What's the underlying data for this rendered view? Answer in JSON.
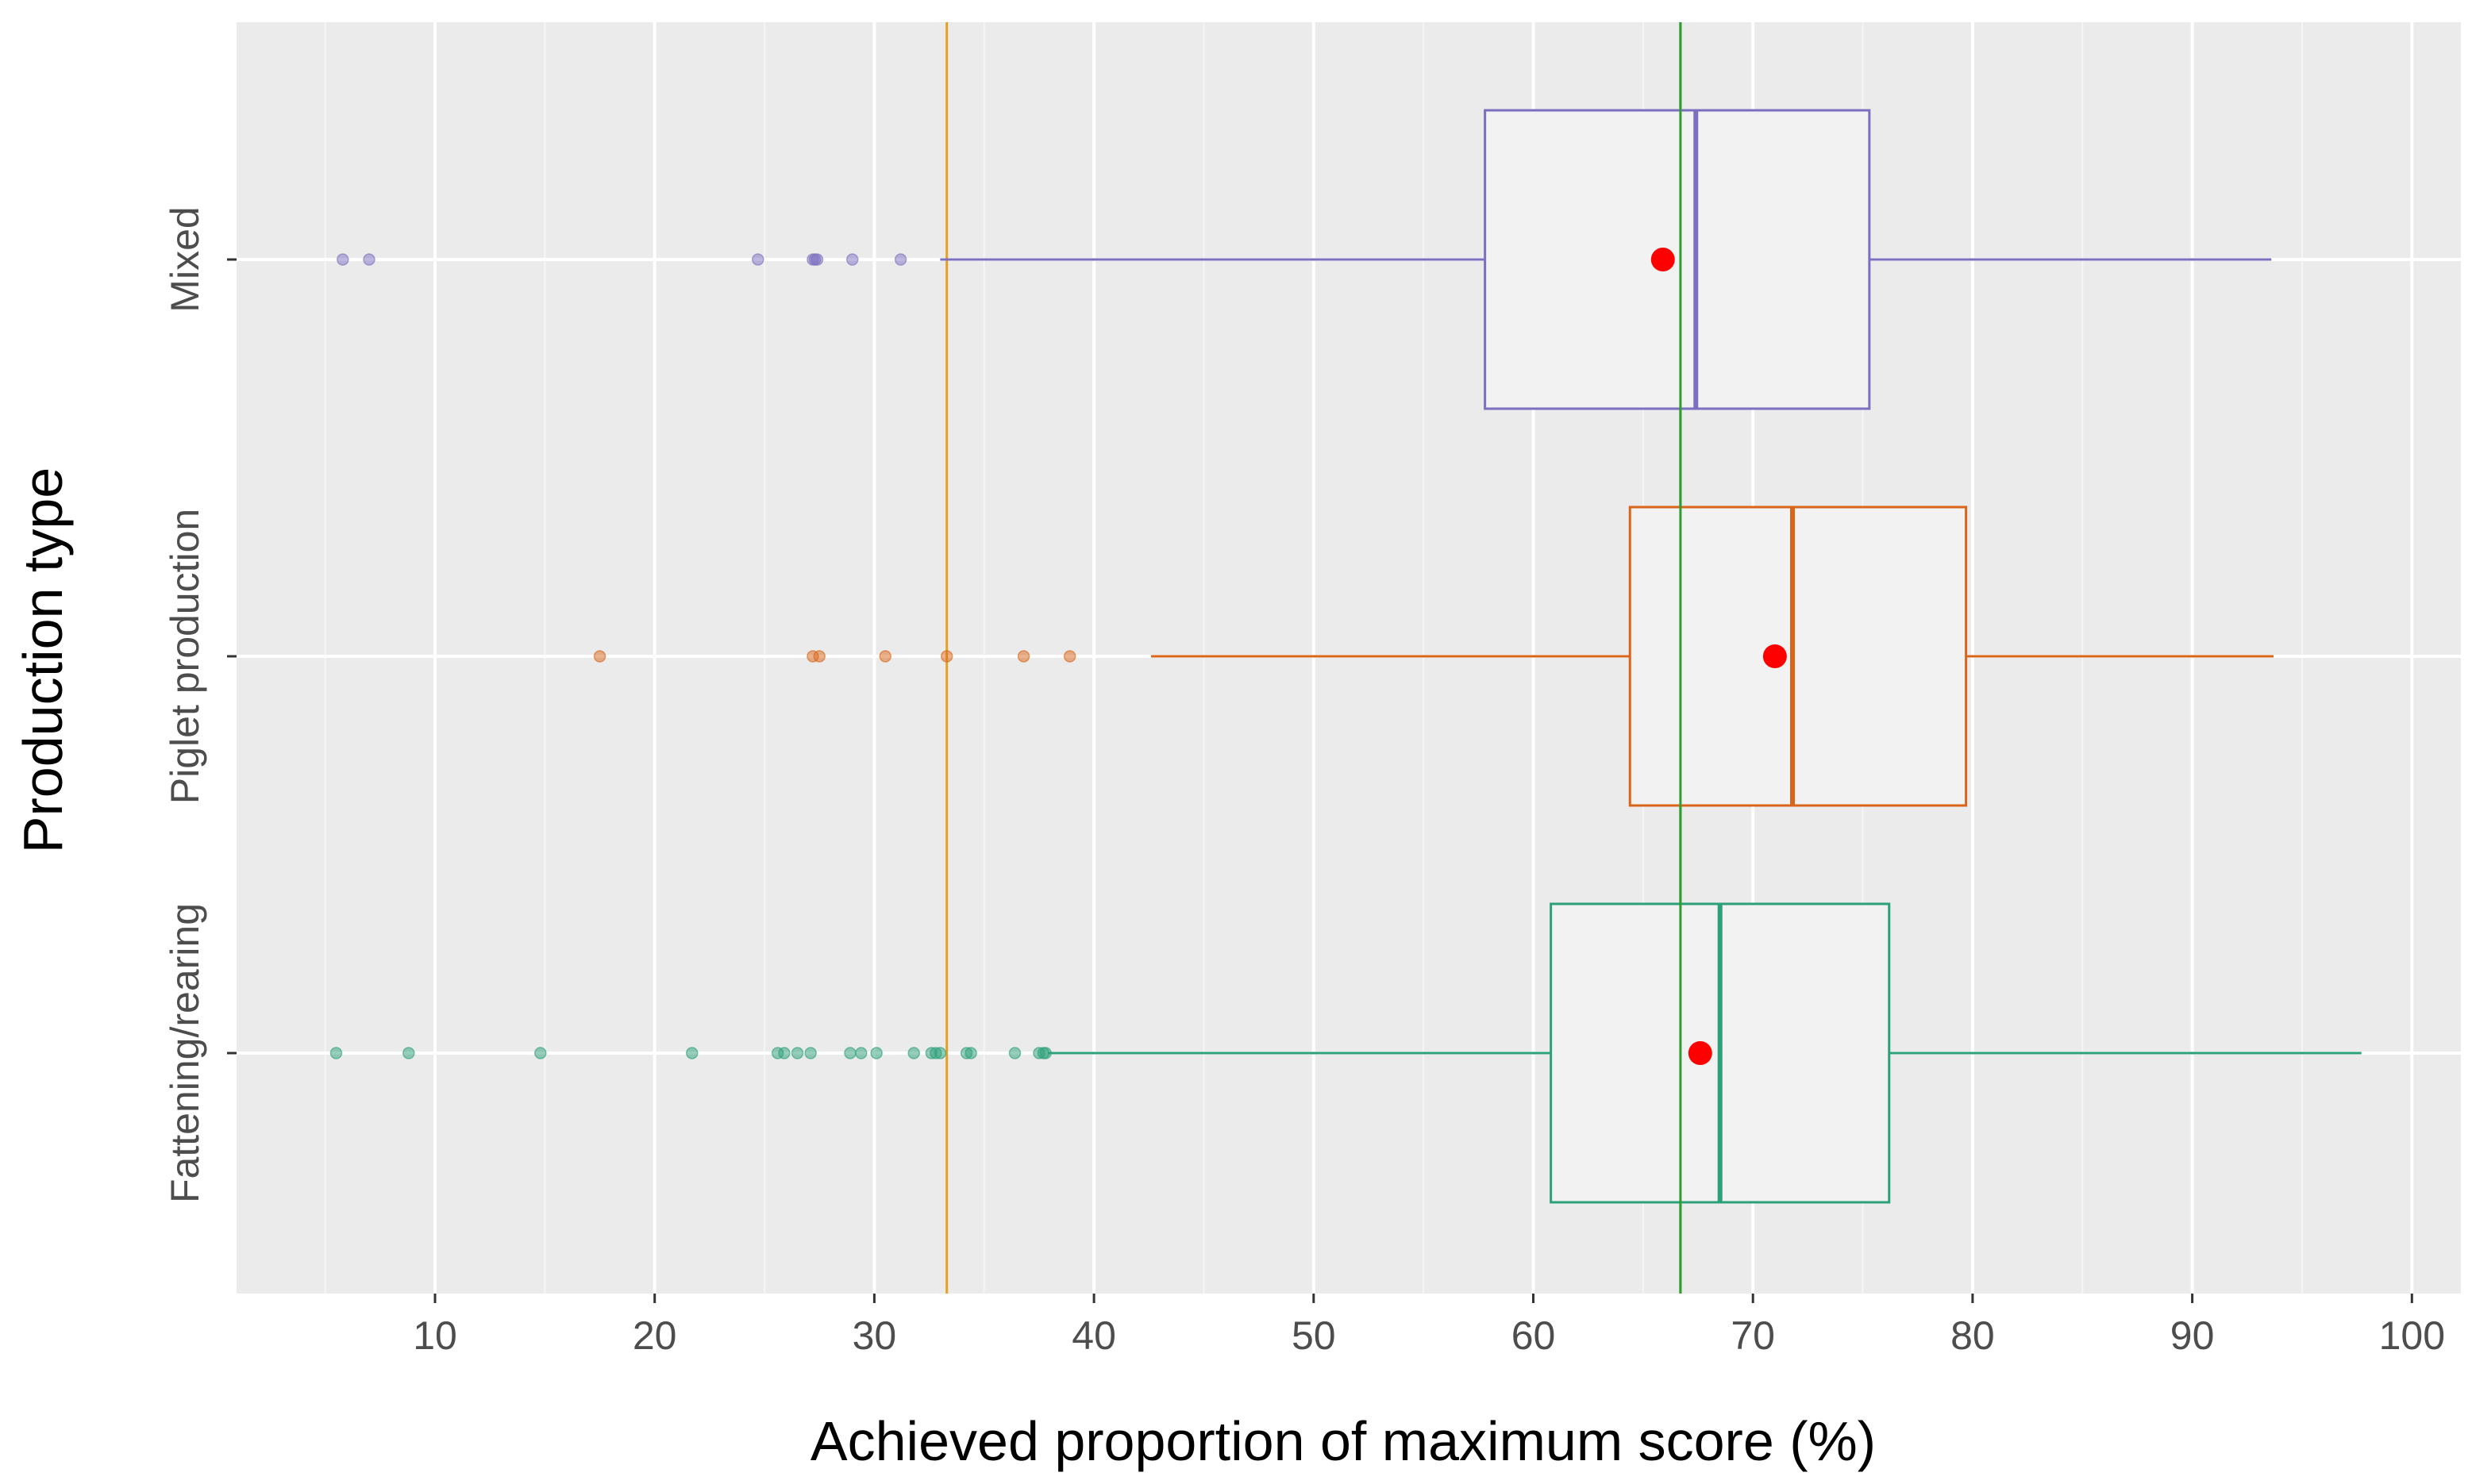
{
  "chart_data": {
    "type": "boxplot",
    "orientation": "horizontal",
    "xlabel": "Achieved proportion of maximum score (%)",
    "ylabel": "Production type",
    "xlim": [
      1,
      101.5
    ],
    "x_ticks": [
      10,
      20,
      30,
      40,
      50,
      60,
      70,
      80,
      90,
      100
    ],
    "x_tick_labels": [
      "10",
      "20",
      "30",
      "40",
      "50",
      "60",
      "70",
      "80",
      "90",
      "100"
    ],
    "grid": true,
    "reference_lines": [
      {
        "name": "orange-reference-line",
        "x": 33.3,
        "color": "#E6A020"
      },
      {
        "name": "green-reference-line",
        "x": 66.7,
        "color": "#2E9E2E"
      }
    ],
    "box_fill": "#F2F2F2",
    "mean_color": "#FF0000",
    "background_color": "#EBEBEB",
    "categories": [
      "Mixed",
      "Piglet production",
      "Fattening/rearing"
    ],
    "series": [
      {
        "name": "Mixed",
        "color": "#7B6FBF",
        "whisker_low": 33.0,
        "q1": 57.8,
        "median": 67.4,
        "q3": 75.3,
        "whisker_high": 93.6,
        "mean": 65.9,
        "outliers": [
          5.8,
          7.0,
          24.7,
          27.2,
          27.3,
          27.4,
          29.0,
          31.2
        ]
      },
      {
        "name": "Piglet production",
        "color": "#D9651A",
        "whisker_low": 42.6,
        "q1": 64.4,
        "median": 71.8,
        "q3": 79.7,
        "whisker_high": 93.7,
        "mean": 71.0,
        "outliers": [
          17.5,
          27.2,
          27.5,
          30.5,
          33.3,
          36.8,
          38.9
        ]
      },
      {
        "name": "Fattening/rearing",
        "color": "#2BA07A",
        "whisker_low": 37.9,
        "q1": 60.8,
        "median": 68.5,
        "q3": 76.2,
        "whisker_high": 97.7,
        "mean": 67.6,
        "outliers": [
          5.5,
          8.8,
          14.8,
          21.7,
          25.6,
          25.9,
          26.5,
          27.1,
          28.9,
          29.4,
          30.1,
          31.8,
          32.6,
          32.8,
          33.0,
          34.2,
          34.4,
          36.4,
          37.5,
          37.7,
          37.8
        ]
      }
    ]
  }
}
